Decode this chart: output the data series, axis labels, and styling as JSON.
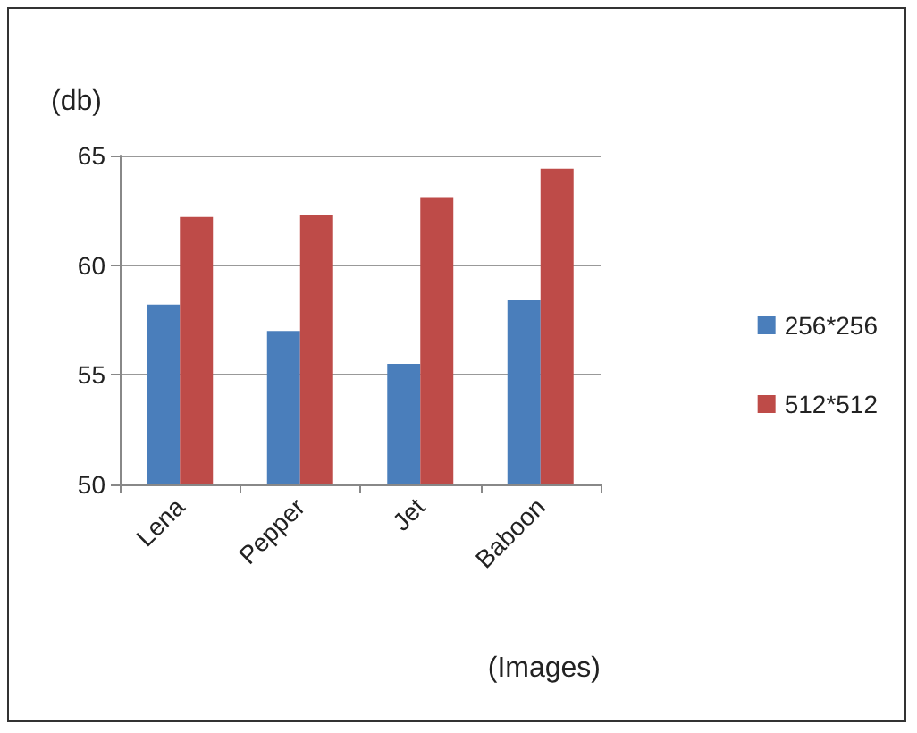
{
  "chart_data": {
    "type": "bar",
    "xlabel": "(Images)",
    "ylabel": "(db)",
    "categories": [
      "Lena",
      "Pepper",
      "Jet",
      "Baboon"
    ],
    "series": [
      {
        "name": "256*256",
        "color": "#4a7ebb",
        "values": [
          58.2,
          57.0,
          55.5,
          58.4
        ]
      },
      {
        "name": "512*512",
        "color": "#be4b48",
        "values": [
          62.2,
          62.3,
          63.1,
          64.4
        ]
      }
    ],
    "ylim": [
      50,
      65
    ],
    "yticks": [
      50,
      55,
      60,
      65
    ],
    "grid": "y",
    "legend": "right"
  }
}
